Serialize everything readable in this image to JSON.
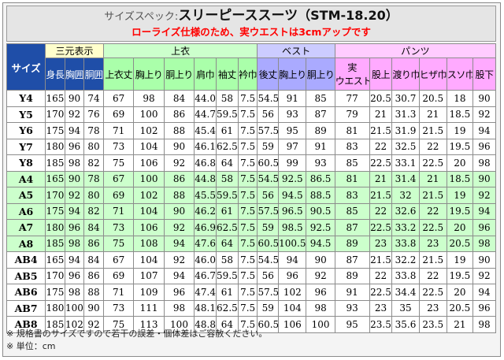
{
  "header": {
    "title_prefix": "サイズスペック:",
    "title_main": "スリーピーススーツ",
    "title_code": "（STM-18.20）",
    "subtitle": "ローライズ仕様のため、実ウエストは3cmアップです"
  },
  "table": {
    "size_header": "サイズ",
    "groups": {
      "label": "三元表示",
      "jacket": "上衣",
      "vest": "ベスト",
      "pants": "パンツ"
    },
    "columns": {
      "label": [
        "身長",
        "胸囲",
        "胴囲"
      ],
      "jacket": [
        "上衣丈",
        "胸上り",
        "胴上り",
        "肩巾",
        "袖丈",
        "衿巾"
      ],
      "vest": [
        "後丈",
        "胸上り",
        "胴上り"
      ],
      "pants": [
        "実\nウエスト",
        "股上",
        "渡り巾",
        "ヒザ巾",
        "スソ巾",
        "股下"
      ]
    },
    "rows": [
      {
        "size": "Y4",
        "group": "Y",
        "values": [
          "165",
          "90",
          "74",
          "67",
          "98",
          "84",
          "44.0",
          "58",
          "7.5",
          "54.5",
          "91",
          "85",
          "77",
          "20.5",
          "30.7",
          "20.5",
          "18",
          "90"
        ]
      },
      {
        "size": "Y5",
        "group": "Y",
        "values": [
          "170",
          "92",
          "76",
          "69",
          "100",
          "86",
          "44.7",
          "59.5",
          "7.5",
          "56",
          "93",
          "87",
          "79",
          "21",
          "31.3",
          "21",
          "18.5",
          "92"
        ]
      },
      {
        "size": "Y6",
        "group": "Y",
        "values": [
          "175",
          "94",
          "78",
          "71",
          "102",
          "88",
          "45.4",
          "61",
          "7.5",
          "57.5",
          "95",
          "89",
          "81",
          "21.5",
          "31.9",
          "21.5",
          "19",
          "94"
        ]
      },
      {
        "size": "Y7",
        "group": "Y",
        "values": [
          "180",
          "96",
          "80",
          "73",
          "104",
          "90",
          "46.1",
          "62.5",
          "7.5",
          "59",
          "97",
          "91",
          "83",
          "22",
          "32.5",
          "22",
          "19.5",
          "96"
        ]
      },
      {
        "size": "Y8",
        "group": "Y",
        "values": [
          "185",
          "98",
          "82",
          "75",
          "106",
          "92",
          "46.8",
          "64",
          "7.5",
          "60.5",
          "99",
          "93",
          "85",
          "22.5",
          "33.1",
          "22.5",
          "20",
          "98"
        ]
      },
      {
        "size": "A4",
        "group": "A",
        "values": [
          "165",
          "90",
          "78",
          "67",
          "100",
          "86",
          "44.8",
          "58",
          "7.5",
          "54.5",
          "92.5",
          "86.5",
          "81",
          "21",
          "31.4",
          "21",
          "18.5",
          "90"
        ]
      },
      {
        "size": "A5",
        "group": "A",
        "values": [
          "170",
          "92",
          "80",
          "69",
          "102",
          "88",
          "45.5",
          "59.5",
          "7.5",
          "56",
          "94.5",
          "88.5",
          "83",
          "21.5",
          "32",
          "21.5",
          "19",
          "92"
        ]
      },
      {
        "size": "A6",
        "group": "A",
        "values": [
          "175",
          "94",
          "82",
          "71",
          "104",
          "90",
          "46.2",
          "61",
          "7.5",
          "57.5",
          "96.5",
          "90.5",
          "85",
          "22",
          "32.6",
          "22",
          "19.5",
          "94"
        ]
      },
      {
        "size": "A7",
        "group": "A",
        "values": [
          "180",
          "96",
          "84",
          "73",
          "106",
          "92",
          "46.9",
          "62.5",
          "7.5",
          "59",
          "98.5",
          "92.5",
          "87",
          "22.5",
          "33.2",
          "22.5",
          "20",
          "96"
        ]
      },
      {
        "size": "A8",
        "group": "A",
        "values": [
          "185",
          "98",
          "86",
          "75",
          "108",
          "94",
          "47.6",
          "64",
          "7.5",
          "60.5",
          "100.5",
          "94.5",
          "89",
          "23",
          "33.8",
          "23",
          "20.5",
          "98"
        ]
      },
      {
        "size": "AB4",
        "group": "AB",
        "values": [
          "165",
          "94",
          "84",
          "67",
          "104",
          "92",
          "46.0",
          "58",
          "7.5",
          "54.5",
          "94",
          "90",
          "87",
          "21.5",
          "32.2",
          "21.5",
          "19",
          "90"
        ]
      },
      {
        "size": "AB5",
        "group": "AB",
        "values": [
          "170",
          "96",
          "86",
          "69",
          "107",
          "94",
          "46.7",
          "59.5",
          "7.5",
          "56",
          "96",
          "92",
          "89",
          "22",
          "33.8",
          "22",
          "19.5",
          "92"
        ]
      },
      {
        "size": "AB6",
        "group": "AB",
        "values": [
          "175",
          "98",
          "88",
          "71",
          "109",
          "96",
          "47.4",
          "61",
          "7.5",
          "57.5",
          "102",
          "96",
          "91",
          "22.5",
          "34.4",
          "22.5",
          "20",
          "94"
        ]
      },
      {
        "size": "AB7",
        "group": "AB",
        "values": [
          "180",
          "100",
          "90",
          "73",
          "111",
          "98",
          "48.1",
          "62.5",
          "7.5",
          "59",
          "104",
          "98",
          "93",
          "23",
          "35",
          "23",
          "20.5",
          "96"
        ]
      },
      {
        "size": "AB8",
        "group": "AB",
        "values": [
          "185",
          "102",
          "92",
          "75",
          "113",
          "100",
          "48.8",
          "64",
          "7.5",
          "60.5",
          "106",
          "100",
          "95",
          "23.5",
          "35.6",
          "23.5",
          "21",
          "98"
        ]
      }
    ]
  },
  "notes": [
    "※ 規格書のサイズですので若干の誤差・個体差はご容赦ください。",
    "※ 単位：cm"
  ]
}
